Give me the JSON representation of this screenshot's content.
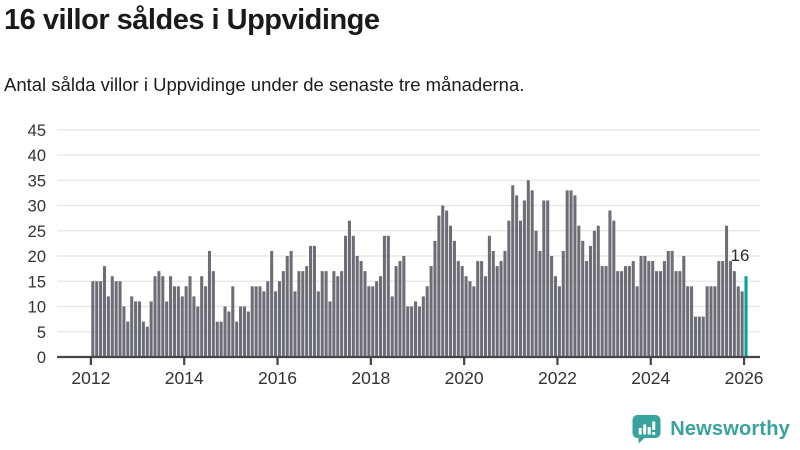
{
  "header": {
    "title": "16 villor såldes i Uppvidinge",
    "subtitle": "Antal sålda villor i Uppvidinge under de senaste tre månaderna."
  },
  "chart_data": {
    "type": "bar",
    "title": "16 villor såldes i Uppvidinge",
    "xlabel": "",
    "ylabel": "",
    "x_start": "2012-01",
    "x_end": "2026-01",
    "x_frequency": "monthly",
    "ylim": [
      0,
      45
    ],
    "grid": true,
    "y_ticks": [
      0,
      5,
      10,
      15,
      20,
      25,
      30,
      35,
      40,
      45
    ],
    "x_tick_years": [
      "2012",
      "2014",
      "2016",
      "2018",
      "2020",
      "2022",
      "2024",
      "2026"
    ],
    "values": [
      15,
      15,
      15,
      18,
      12,
      16,
      15,
      15,
      10,
      7,
      12,
      11,
      11,
      7,
      6,
      11,
      16,
      17,
      16,
      11,
      16,
      14,
      14,
      12,
      14,
      16,
      12,
      10,
      16,
      14,
      21,
      17,
      7,
      7,
      10,
      9,
      14,
      7,
      10,
      10,
      9,
      14,
      14,
      14,
      13,
      15,
      21,
      13,
      15,
      17,
      20,
      21,
      13,
      17,
      17,
      18,
      22,
      22,
      13,
      17,
      17,
      11,
      17,
      16,
      17,
      24,
      27,
      24,
      20,
      19,
      17,
      14,
      14,
      15,
      16,
      24,
      24,
      12,
      18,
      19,
      20,
      10,
      10,
      11,
      10,
      12,
      14,
      18,
      23,
      28,
      30,
      29,
      26,
      23,
      19,
      18,
      16,
      15,
      14,
      19,
      19,
      16,
      24,
      21,
      18,
      19,
      21,
      27,
      34,
      32,
      27,
      31,
      35,
      33,
      25,
      21,
      31,
      31,
      20,
      16,
      14,
      21,
      33,
      33,
      32,
      26,
      23,
      19,
      22,
      25,
      26,
      18,
      18,
      29,
      27,
      17,
      17,
      18,
      18,
      19,
      14,
      20,
      20,
      19,
      19,
      17,
      17,
      19,
      21,
      21,
      17,
      17,
      20,
      14,
      14,
      8,
      8,
      8,
      14,
      14,
      14,
      19,
      19,
      26,
      19,
      17,
      14,
      13,
      16
    ],
    "highlight_last": true,
    "last_value_label": "16",
    "bar_color": "#6d6d75",
    "highlight_color": "#00a2a0",
    "grid_color": "#e4e4e4",
    "axis_color": "#454545",
    "tick_label_color": "#333333",
    "annotation_color": "#2b2b2b"
  },
  "footer": {
    "brand": "Newsworthy",
    "brand_color": "#38a39e"
  }
}
